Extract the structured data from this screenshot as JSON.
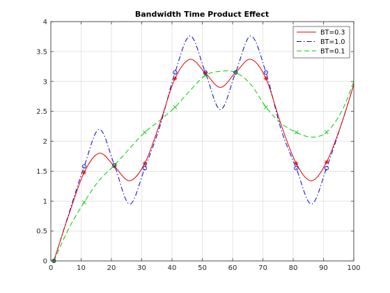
{
  "chart_data": {
    "type": "line",
    "title": "Bandwidth Time Product Effect",
    "xlabel": "",
    "ylabel": "",
    "xlim": [
      0,
      100
    ],
    "ylim": [
      0,
      4
    ],
    "xticks": [
      0,
      10,
      20,
      30,
      40,
      50,
      60,
      70,
      80,
      90,
      100
    ],
    "yticks": [
      0,
      0.5,
      1,
      1.5,
      2,
      2.5,
      3,
      3.5,
      4
    ],
    "ytick_labels": [
      "0",
      "0.5",
      "1",
      "1.5",
      "2",
      "2.5",
      "3",
      "3.5",
      "4"
    ],
    "grid": true,
    "legend_position": "top-right",
    "sample_x": [
      1,
      11,
      21,
      31,
      41,
      51,
      61,
      71,
      81,
      91,
      101
    ],
    "sample_values": [
      0,
      1.5,
      1.55,
      1.65,
      3.05,
      3.15,
      3.15,
      3.05,
      1.65,
      1.65,
      3.0
    ],
    "series": [
      {
        "name": "BT=0.3",
        "color": "#e00000",
        "dash": "solid",
        "marker": "*",
        "x": [
          1,
          6,
          11,
          16,
          21,
          26,
          31,
          36,
          41,
          46,
          51,
          56,
          61,
          66,
          71,
          76,
          81,
          86,
          91,
          96,
          100
        ],
        "y": [
          0.0,
          0.78,
          1.48,
          1.8,
          1.58,
          1.34,
          1.63,
          2.3,
          3.05,
          3.37,
          3.14,
          2.9,
          3.15,
          3.37,
          3.05,
          2.28,
          1.63,
          1.34,
          1.65,
          2.3,
          2.95
        ]
      },
      {
        "name": "BT=1.0",
        "color": "#0000cc",
        "dash": "dashdot",
        "marker": "o",
        "x": [
          1,
          6,
          11,
          16,
          21,
          26,
          31,
          36,
          41,
          46,
          51,
          56,
          61,
          66,
          71,
          76,
          81,
          86,
          91,
          96,
          100
        ],
        "y": [
          0.0,
          0.8,
          1.58,
          2.2,
          1.6,
          0.95,
          1.55,
          2.25,
          3.15,
          3.76,
          3.15,
          2.53,
          3.15,
          3.76,
          3.15,
          2.2,
          1.55,
          0.95,
          1.55,
          2.3,
          2.95
        ]
      },
      {
        "name": "BT=0.1",
        "color": "#00cc00",
        "dash": "dashed",
        "marker": "x",
        "x": [
          1,
          6,
          11,
          16,
          21,
          26,
          31,
          36,
          41,
          46,
          51,
          56,
          61,
          66,
          71,
          76,
          81,
          86,
          91,
          96,
          100
        ],
        "y": [
          0.0,
          0.55,
          0.98,
          1.35,
          1.6,
          1.88,
          2.15,
          2.35,
          2.57,
          2.85,
          3.1,
          3.17,
          3.15,
          2.95,
          2.57,
          2.3,
          2.15,
          2.07,
          2.15,
          2.5,
          3.0
        ]
      }
    ]
  }
}
